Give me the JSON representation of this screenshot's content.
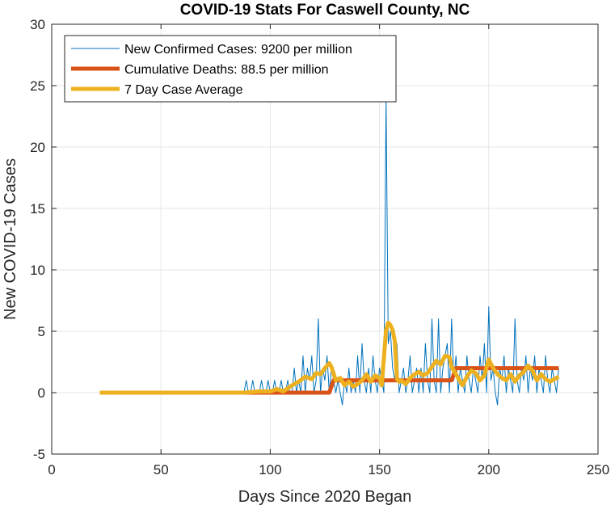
{
  "chart_data": {
    "type": "line",
    "title": "COVID-19 Stats For Caswell County, NC",
    "xlabel": "Days Since 2020 Began",
    "ylabel": "New COVID-19 Cases",
    "xlim": [
      0,
      250
    ],
    "ylim": [
      -5,
      30
    ],
    "xticks": [
      0,
      50,
      100,
      150,
      200,
      250
    ],
    "yticks": [
      -5,
      0,
      5,
      10,
      15,
      20,
      25,
      30
    ],
    "grid": true,
    "legend_position": "top-left",
    "series": [
      {
        "name": "New Confirmed Cases: 9200 per million",
        "color": "#0072BD",
        "x": [
          88,
          89,
          90,
          91,
          92,
          93,
          94,
          95,
          96,
          97,
          98,
          99,
          100,
          101,
          102,
          103,
          104,
          105,
          106,
          107,
          108,
          109,
          110,
          111,
          112,
          113,
          114,
          115,
          116,
          117,
          118,
          119,
          120,
          121,
          122,
          123,
          124,
          125,
          126,
          127,
          128,
          129,
          130,
          131,
          132,
          133,
          134,
          135,
          136,
          137,
          138,
          139,
          140,
          141,
          142,
          143,
          144,
          145,
          146,
          147,
          148,
          149,
          150,
          151,
          152,
          153,
          154,
          155,
          156,
          157,
          158,
          159,
          160,
          161,
          162,
          163,
          164,
          165,
          166,
          167,
          168,
          169,
          170,
          171,
          172,
          173,
          174,
          175,
          176,
          177,
          178,
          179,
          180,
          181,
          182,
          183,
          184,
          185,
          186,
          187,
          188,
          189,
          190,
          191,
          192,
          193,
          194,
          195,
          196,
          197,
          198,
          199,
          200,
          201,
          202,
          203,
          204,
          205,
          206,
          207,
          208,
          209,
          210,
          211,
          212,
          213,
          214,
          215,
          216,
          217,
          218,
          219,
          220,
          221,
          222,
          223,
          224,
          225,
          226,
          227,
          228,
          229,
          230,
          231,
          232
        ],
        "y": [
          0,
          1,
          0,
          0,
          1,
          0,
          0,
          0,
          1,
          0,
          0,
          1,
          0,
          0,
          1,
          0,
          0,
          1,
          0,
          0,
          1,
          0,
          0,
          2,
          0,
          1,
          0,
          3,
          0,
          2,
          1,
          3,
          0,
          1,
          6,
          0,
          2,
          1,
          3,
          0,
          2,
          1,
          0,
          1,
          0,
          -1,
          1,
          0,
          2,
          0,
          1,
          0,
          3,
          0,
          4,
          1,
          0,
          2,
          0,
          3,
          1,
          0,
          2,
          1,
          0,
          24,
          4,
          5,
          2,
          1,
          4,
          0,
          1,
          2,
          0,
          1,
          3,
          0,
          1,
          2,
          0,
          2,
          0,
          4,
          1,
          0,
          6,
          1,
          0,
          6,
          0,
          2,
          3,
          4,
          0,
          6,
          1,
          3,
          0,
          2,
          1,
          0,
          3,
          1,
          0,
          2,
          1,
          0,
          3,
          1,
          4,
          0,
          7,
          1,
          2,
          0,
          -1,
          2,
          1,
          3,
          0,
          2,
          1,
          0,
          6,
          1,
          0,
          2,
          1,
          3,
          0,
          2,
          1,
          3,
          0,
          2,
          1,
          0,
          3,
          1,
          0,
          2,
          1,
          0,
          2
        ]
      },
      {
        "name": "Cumulative Deaths: 88.5 per million",
        "color": "#D95319",
        "x": [
          88,
          127,
          129,
          183,
          185,
          232
        ],
        "y": [
          0,
          0,
          1,
          1,
          2,
          2
        ]
      },
      {
        "name": "7 Day Case Average",
        "color": "#EDB120",
        "x": [
          22,
          88,
          95,
          100,
          103,
          106,
          110,
          113,
          116,
          119,
          121,
          123,
          125,
          127,
          128,
          130,
          132,
          134,
          136,
          138,
          140,
          142,
          144,
          146,
          148,
          150,
          151,
          152,
          153,
          154,
          155,
          156,
          157,
          158,
          159,
          160,
          162,
          164,
          166,
          168,
          170,
          172,
          174,
          176,
          178,
          180,
          182,
          183,
          185,
          188,
          190,
          192,
          194,
          196,
          198,
          200,
          202,
          204,
          206,
          208,
          210,
          212,
          214,
          216,
          218,
          220,
          222,
          224,
          226,
          228,
          230,
          232
        ],
        "y": [
          0,
          0,
          0.1,
          0.1,
          0.3,
          0.1,
          0.6,
          0.9,
          1.3,
          1.1,
          1.6,
          1.5,
          2.0,
          2.4,
          2.1,
          1.0,
          1.2,
          0.6,
          0.9,
          0.5,
          0.7,
          1.0,
          1.5,
          0.9,
          1.4,
          1.2,
          0.6,
          2.8,
          5.1,
          5.7,
          5.5,
          5.1,
          4.2,
          1.1,
          0.9,
          1.0,
          0.7,
          1.2,
          1.5,
          1.7,
          1.4,
          1.6,
          2.1,
          2.6,
          2.3,
          3.0,
          2.9,
          2.1,
          1.5,
          0.6,
          1.3,
          1.8,
          1.6,
          1.0,
          1.4,
          2.7,
          2.0,
          1.5,
          1.2,
          1.0,
          1.5,
          0.9,
          1.4,
          1.7,
          2.2,
          1.8,
          1.0,
          1.5,
          1.1,
          0.9,
          1.1,
          1.3
        ]
      }
    ]
  }
}
